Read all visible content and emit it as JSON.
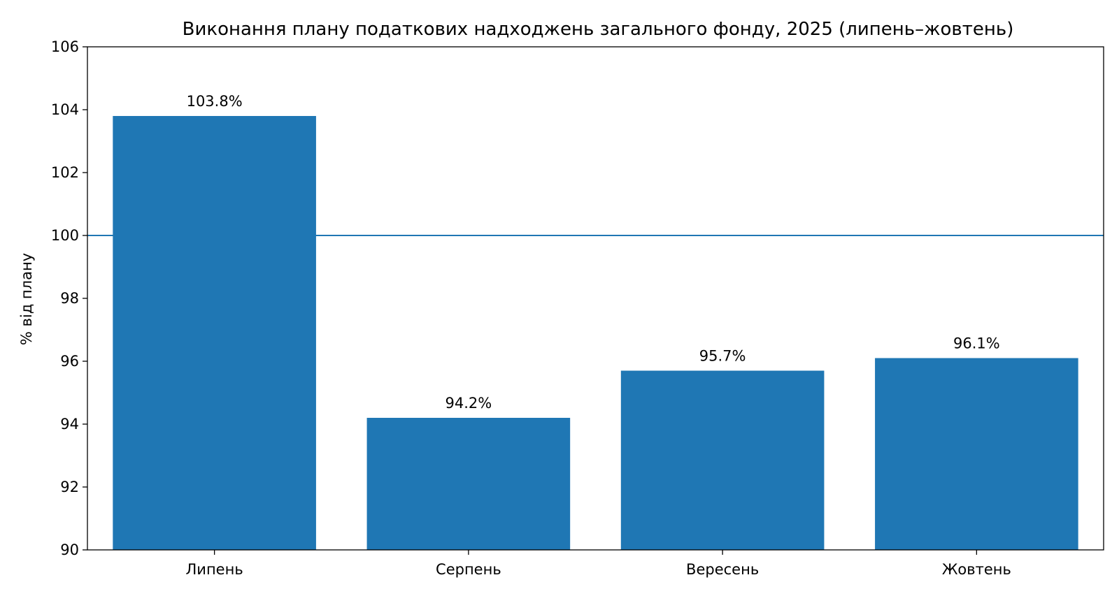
{
  "chart_data": {
    "type": "bar",
    "title": "Виконання плану податкових надходжень загального фонду, 2025 (липень–жовтень)",
    "xlabel": "",
    "ylabel": "% від плану",
    "categories": [
      "Липень",
      "Серпень",
      "Вересень",
      "Жовтень"
    ],
    "values": [
      103.8,
      94.2,
      95.7,
      96.1
    ],
    "data_labels": [
      "103.8%",
      "94.2%",
      "95.7%",
      "96.1%"
    ],
    "ylim": [
      90,
      106
    ],
    "yticks": [
      90,
      92,
      94,
      96,
      98,
      100,
      102,
      104,
      106
    ],
    "reference_line": 100,
    "grid": false,
    "legend": "none",
    "bar_color": "#1f77b4",
    "line_color": "#1f77b4"
  }
}
